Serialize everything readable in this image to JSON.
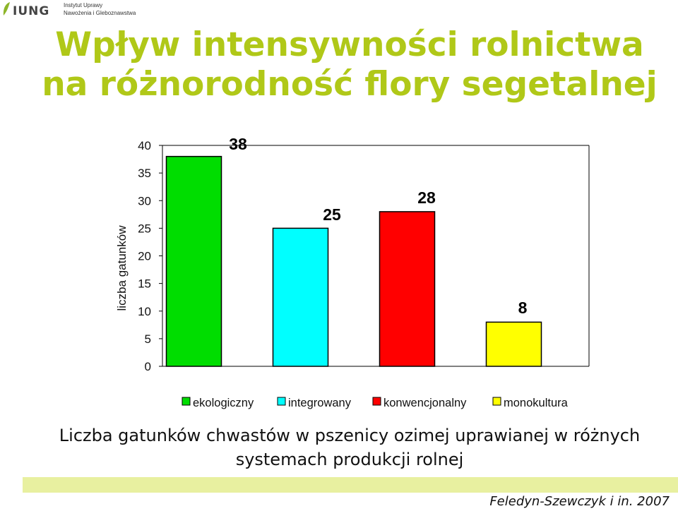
{
  "logo": {
    "name": "IUNG",
    "line1": "Instytut Uprawy",
    "line2": "Nawożenia i Gleboznawstwa"
  },
  "title": {
    "line1": "Wpływ intensywności rolnictwa",
    "line2": "na różnorodność flory segetalnej"
  },
  "chart_data": {
    "type": "bar",
    "categories": [
      "ekologiczny",
      "integrowany",
      "konwencjonalny",
      "monokultura"
    ],
    "values": [
      38,
      25,
      28,
      8
    ],
    "colors": [
      "#00dd00",
      "#00ffff",
      "#ff0000",
      "#ffff00"
    ],
    "ylabel": "liczba gatunków",
    "ylim": [
      0,
      40
    ],
    "yticks": [
      0,
      5,
      10,
      15,
      20,
      25,
      30,
      35,
      40
    ],
    "grid": false,
    "legend": "bottom"
  },
  "caption": {
    "line1": "Liczba gatunków chwastów w pszenicy ozimej uprawianej w różnych",
    "line2": "systemach produkcji rolnej"
  },
  "footer": {
    "author": "Feledyn-Szewczyk i in. 2007"
  }
}
